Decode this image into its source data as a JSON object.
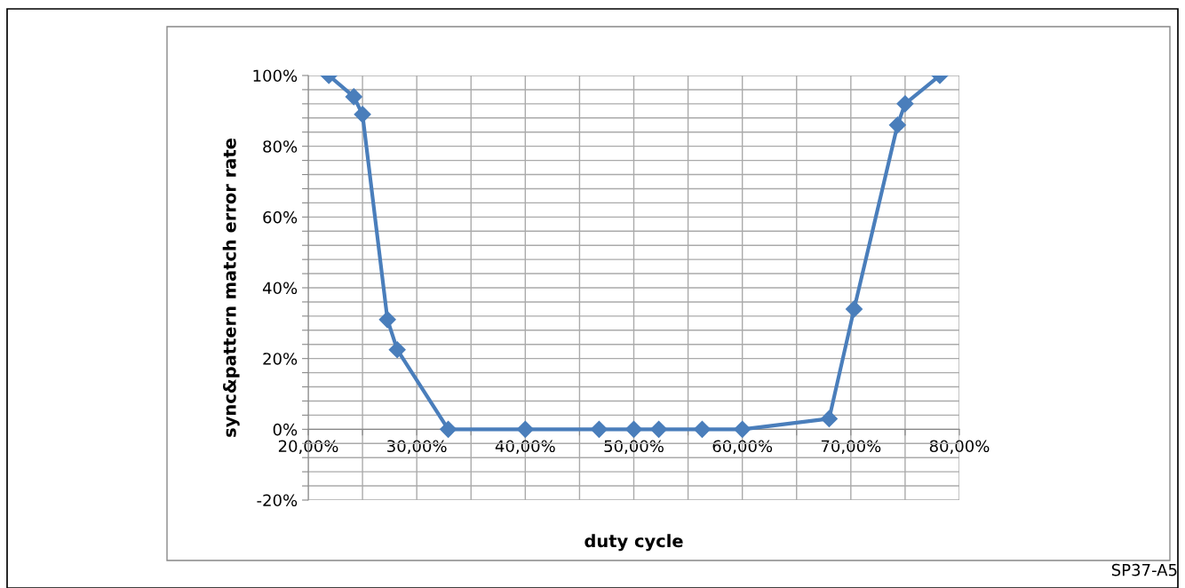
{
  "chart_data": {
    "type": "line",
    "xlabel": "duty cycle",
    "ylabel": "sync&pattern match error rate",
    "x": [
      21.9,
      24.2,
      25.0,
      27.3,
      28.2,
      32.9,
      40.0,
      46.8,
      50.0,
      52.3,
      56.3,
      60.0,
      68.0,
      70.3,
      74.3,
      75.0,
      78.2
    ],
    "series": [
      {
        "color": "#4a7ebb",
        "values": [
          100,
          94,
          89,
          31,
          22.5,
          0,
          0,
          0,
          0,
          0,
          0,
          0,
          3,
          34,
          86,
          92,
          100
        ]
      }
    ],
    "xlim": [
      20,
      80
    ],
    "ylim": [
      -20,
      100
    ],
    "xticks": [
      {
        "value": 20,
        "label": "20,00%"
      },
      {
        "value": 25,
        "label": null
      },
      {
        "value": 30,
        "label": "30,00%"
      },
      {
        "value": 35,
        "label": null
      },
      {
        "value": 40,
        "label": "40,00%"
      },
      {
        "value": 45,
        "label": null
      },
      {
        "value": 50,
        "label": "50,00%"
      },
      {
        "value": 55,
        "label": null
      },
      {
        "value": 60,
        "label": "60,00%"
      },
      {
        "value": 65,
        "label": null
      },
      {
        "value": 70,
        "label": "70,00%"
      },
      {
        "value": 75,
        "label": null
      },
      {
        "value": 80,
        "label": "80,00%"
      }
    ],
    "yticks": [
      {
        "value": -20,
        "label": "-20%"
      },
      {
        "value": -16,
        "label": null
      },
      {
        "value": -12,
        "label": null
      },
      {
        "value": -8,
        "label": null
      },
      {
        "value": -4,
        "label": null
      },
      {
        "value": 0,
        "label": "0%"
      },
      {
        "value": 4,
        "label": null
      },
      {
        "value": 8,
        "label": null
      },
      {
        "value": 12,
        "label": null
      },
      {
        "value": 16,
        "label": null
      },
      {
        "value": 20,
        "label": "20%"
      },
      {
        "value": 24,
        "label": null
      },
      {
        "value": 28,
        "label": null
      },
      {
        "value": 32,
        "label": null
      },
      {
        "value": 36,
        "label": null
      },
      {
        "value": 40,
        "label": "40%"
      },
      {
        "value": 44,
        "label": null
      },
      {
        "value": 48,
        "label": null
      },
      {
        "value": 52,
        "label": null
      },
      {
        "value": 56,
        "label": null
      },
      {
        "value": 60,
        "label": "60%"
      },
      {
        "value": 64,
        "label": null
      },
      {
        "value": 68,
        "label": null
      },
      {
        "value": 72,
        "label": null
      },
      {
        "value": 76,
        "label": null
      },
      {
        "value": 80,
        "label": "80%"
      },
      {
        "value": 84,
        "label": null
      },
      {
        "value": 88,
        "label": null
      },
      {
        "value": 92,
        "label": null
      },
      {
        "value": 96,
        "label": null
      },
      {
        "value": 100,
        "label": "100%"
      }
    ],
    "grid": true,
    "marker": "diamond",
    "line_style": "solid",
    "legend": false,
    "annotations": [
      "SP37-A5"
    ]
  }
}
